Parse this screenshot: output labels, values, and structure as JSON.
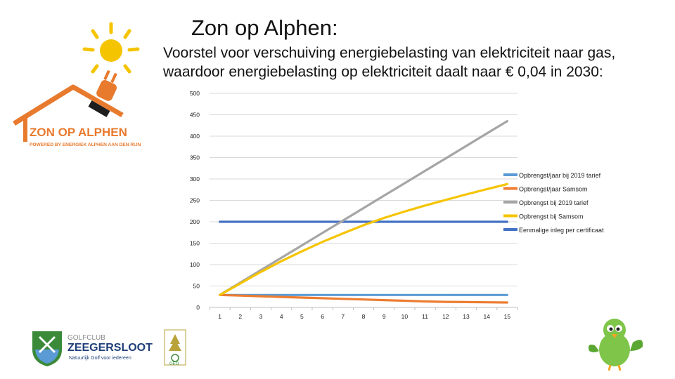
{
  "page": {
    "title": "Zon op Alphen:",
    "subtitle": "Voorstel voor verschuiving energiebelasting van elektriciteit naar gas, waardoor energiebelasting op elektriciteit daalt naar € 0,04 in 2030:"
  },
  "logos": {
    "zon_op_alphen": {
      "name": "ZON OP ALPHEN",
      "tagline": "POWERED BY ENERGIEK ALPHEN AAN DEN RIJN",
      "color": "#e87a2e",
      "sun_color": "#f5c400"
    },
    "golfclub": {
      "line1": "GOLFCLUB",
      "line2": "ZEEGERSLOOT",
      "tagline": "Natuurlijk Golf voor iedereen",
      "color": "#1f3f78"
    },
    "geo": {
      "label": "GEO"
    },
    "bird": {
      "icon": "green-bird-mascot"
    }
  },
  "chart_data": {
    "type": "line",
    "x": [
      1,
      2,
      3,
      4,
      5,
      6,
      7,
      8,
      9,
      10,
      11,
      12,
      13,
      14,
      15
    ],
    "ylim": [
      0,
      500
    ],
    "yticks": [
      0,
      50,
      100,
      150,
      200,
      250,
      300,
      350,
      400,
      450,
      500
    ],
    "grid": true,
    "legend_position": "right",
    "series": [
      {
        "name": "Opbrengst/jaar bij 2019 tarief",
        "color": "#5b9bd5",
        "values": [
          29,
          29,
          29,
          29,
          29,
          29,
          29,
          29,
          29,
          29,
          29,
          29,
          29,
          29,
          29
        ]
      },
      {
        "name": "Opbrengst/jaar Samsom",
        "color": "#ed7d31",
        "values": [
          29,
          27.5,
          26,
          24.5,
          23,
          21.5,
          20,
          18.5,
          17,
          15.5,
          14,
          13,
          12.5,
          12,
          11.5
        ]
      },
      {
        "name": "Opbrengst bij 2019 tarief",
        "color": "#a5a5a5",
        "values": [
          29,
          58,
          87,
          116,
          145,
          174,
          203,
          232,
          261,
          290,
          319,
          348,
          377,
          406,
          435
        ]
      },
      {
        "name": "Opbrengst bij Samsom",
        "color": "#f5c400",
        "values": [
          29,
          56,
          83,
          108,
          131,
          153,
          173,
          192,
          209,
          224,
          238,
          251,
          264,
          276,
          288
        ]
      },
      {
        "name": "Eenmalige inleg per certificaat",
        "color": "#4472c4",
        "values": [
          200,
          200,
          200,
          200,
          200,
          200,
          200,
          200,
          200,
          200,
          200,
          200,
          200,
          200,
          200
        ]
      }
    ]
  }
}
